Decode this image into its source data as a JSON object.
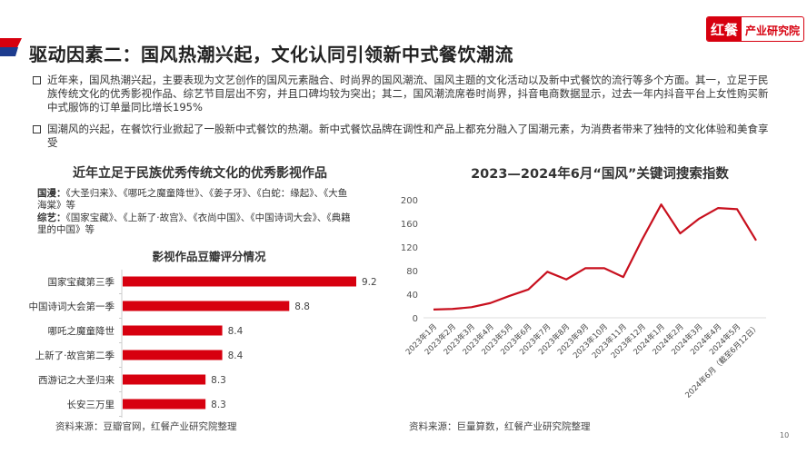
{
  "header": {
    "title": "驱动因素二：国风热潮兴起，文化认同引领新中式餐饮潮流",
    "logo_red": "红餐",
    "logo_text": "产业研究院"
  },
  "bullets": [
    "近年来，国风热潮兴起，主要表现为文艺创作的国风元素融合、时尚界的国风潮流、国风主题的文化活动以及新中式餐饮的流行等多个方面。其一，立足于民族传统文化的优秀影视作品、综艺节目层出不穷，并且口碑均较为突出；其二，国风潮流席卷时尚界，抖音电商数据显示，过去一年内抖音平台上女性购买新中式服饰的订单量同比增长195%",
    "国潮风的兴起，在餐饮行业掀起了一股新中式餐饮的热潮。新中式餐饮品牌在调性和产品上都充分融入了国潮元素，为消费者带来了独特的文化体验和美食享受"
  ],
  "left": {
    "title": "近年立足于民族优秀传统文化的优秀影视作品",
    "anime_label": "国漫：",
    "anime_text": "《大圣归来》、《哪吒之魔童降世》、《姜子牙》、《白蛇：缘起》、《大鱼海棠》等",
    "variety_label": "综艺：",
    "variety_text": "《国家宝藏》、《上新了·故宫》、《衣尚中国》、《中国诗词大会》、《典籍里的中国》等",
    "source": "资料来源：豆瓣官网，红餐产业研究院整理"
  },
  "right": {
    "source": "资料来源：巨量算数，红餐产业研究院整理"
  },
  "page_number": "10",
  "chart_data": [
    {
      "type": "bar",
      "orientation": "horizontal",
      "title": "影视作品豆瓣评分情况",
      "categories": [
        "国家宝藏第三季",
        "中国诗词大会第一季",
        "哪吒之魔童降世",
        "上新了·故宫第二季",
        "西游记之大圣归来",
        "长安三万里"
      ],
      "values": [
        9.2,
        8.8,
        8.4,
        8.4,
        8.3,
        8.3
      ],
      "labels": [
        "9.2",
        "8.8",
        "8.4",
        "8.4",
        "8.3",
        "8.3"
      ],
      "xlim": [
        7.8,
        9.2
      ],
      "color": "#d7000f"
    },
    {
      "type": "line",
      "title": "2023—2024年6月“国风”关键词搜索指数",
      "categories": [
        "2023年1月",
        "2023年2月",
        "2023年3月",
        "2023年4月",
        "2023年5月",
        "2023年6月",
        "2023年7月",
        "2023年8月",
        "2023年9月",
        "2023年10月",
        "2023年11月",
        "2023年12月",
        "2024年1月",
        "2024年2月",
        "2024年3月",
        "2024年4月",
        "2024年5月",
        "2024年6月（截至6月12日）"
      ],
      "values": [
        14,
        15,
        18,
        25,
        37,
        48,
        78,
        65,
        84,
        84,
        69,
        133,
        192,
        143,
        168,
        186,
        184,
        131
      ],
      "ylim": [
        0,
        200
      ],
      "yticks": [
        "0",
        "40",
        "80",
        "120",
        "160",
        "200"
      ],
      "grid": false,
      "color": "#c8101e"
    }
  ]
}
